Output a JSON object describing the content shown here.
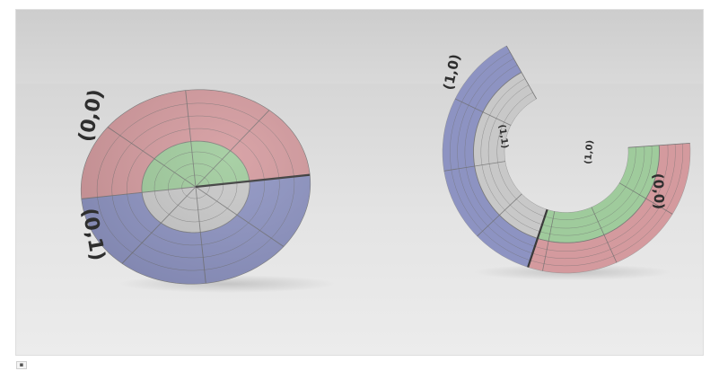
{
  "scene": {
    "description_free": true,
    "background": {
      "wall_top": "#cfcfcf",
      "wall_bottom": "#d8d8d8",
      "floor_near": "#e9e9e9",
      "floor_far": "#d3d3d3"
    }
  },
  "palette": {
    "red": "#d49a9e",
    "blue": "#8d93c2",
    "green": "#9fcb9c",
    "gray": "#c8c8c8",
    "grid_line": "#6e6e6e",
    "seam_line": "#3a3a3a"
  },
  "left_disc": {
    "labels": [
      "(0,0)",
      "(0,1)"
    ]
  },
  "right_annulus": {
    "labels": [
      "(1,0)",
      "(1,1)",
      "(1,0)",
      "(0,0)"
    ]
  },
  "caption": {
    "marker_icon": "image-icon"
  }
}
